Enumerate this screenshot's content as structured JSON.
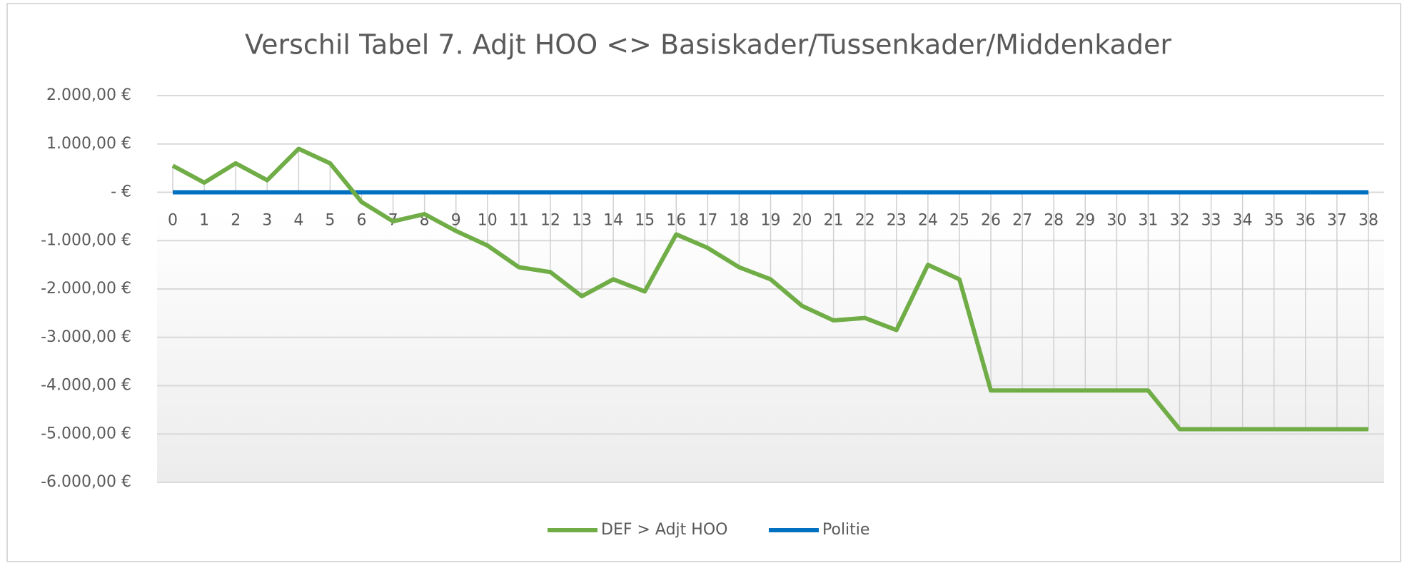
{
  "chart_data": {
    "type": "line",
    "title": "Verschil Tabel 7. Adjt HOO <> Basiskader/Tussenkader/Middenkader",
    "categories": [
      "0",
      "1",
      "2",
      "3",
      "4",
      "5",
      "6",
      "7",
      "8",
      "9",
      "10",
      "11",
      "12",
      "13",
      "14",
      "15",
      "16",
      "17",
      "18",
      "19",
      "20",
      "21",
      "22",
      "23",
      "24",
      "25",
      "26",
      "27",
      "28",
      "29",
      "30",
      "31",
      "32",
      "33",
      "34",
      "35",
      "36",
      "37",
      "38"
    ],
    "series": [
      {
        "name": "DEF > Adjt HOO",
        "color": "#70ad47",
        "values": [
          550,
          200,
          600,
          250,
          900,
          600,
          -200,
          -600,
          -450,
          -800,
          -1100,
          -1550,
          -1650,
          -2150,
          -1800,
          -2050,
          -870,
          -1150,
          -1550,
          -1800,
          -2350,
          -2650,
          -2600,
          -2850,
          -1500,
          -1800,
          -4100,
          -4100,
          -4100,
          -4100,
          -4100,
          -4100,
          -4900,
          -4900,
          -4900,
          -4900,
          -4900,
          -4900,
          -4900
        ]
      },
      {
        "name": "Politie",
        "color": "#0070c0",
        "values": [
          0,
          0,
          0,
          0,
          0,
          0,
          0,
          0,
          0,
          0,
          0,
          0,
          0,
          0,
          0,
          0,
          0,
          0,
          0,
          0,
          0,
          0,
          0,
          0,
          0,
          0,
          0,
          0,
          0,
          0,
          0,
          0,
          0,
          0,
          0,
          0,
          0,
          0,
          0
        ]
      }
    ],
    "ylim": [
      -6000,
      2000
    ],
    "yticks": [
      {
        "value": 2000,
        "label": "2.000,00 €"
      },
      {
        "value": 1000,
        "label": "1.000,00 €"
      },
      {
        "value": 0,
        "label": "-   €"
      },
      {
        "value": -1000,
        "label": "-1.000,00 €"
      },
      {
        "value": -2000,
        "label": "-2.000,00 €"
      },
      {
        "value": -3000,
        "label": "-3.000,00 €"
      },
      {
        "value": -4000,
        "label": "-4.000,00 €"
      },
      {
        "value": -5000,
        "label": "-5.000,00 €"
      },
      {
        "value": -6000,
        "label": "-6.000,00 €"
      }
    ],
    "grid": true,
    "legend": "bottom"
  }
}
